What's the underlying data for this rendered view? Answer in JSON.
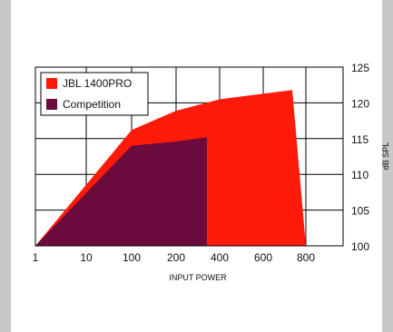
{
  "chart_data": {
    "type": "area",
    "x_ticks": [
      "1",
      "10",
      "100",
      "200",
      "400",
      "600",
      "800"
    ],
    "y_ticks": [
      "100",
      "105",
      "110",
      "115",
      "120",
      "125"
    ],
    "ylim": [
      100,
      125
    ],
    "xlabel": "INPUT POWER",
    "ylabel": "dB SPL",
    "grid": true,
    "legend_position": "top-left",
    "series": [
      {
        "name": "JBL 1400PRO",
        "color": "#ff1a0a",
        "points": [
          {
            "x": "1",
            "y": 100
          },
          {
            "x": "100",
            "y": 116.2
          },
          {
            "x": "200",
            "y": 118.9
          },
          {
            "x": "400",
            "y": 120.5
          },
          {
            "x": "700",
            "y": 121.8
          },
          {
            "x": "800",
            "y": 100
          }
        ]
      },
      {
        "name": "Competition",
        "color": "#6b0a3c",
        "points": [
          {
            "x": "1",
            "y": 100
          },
          {
            "x": "100",
            "y": 114.0
          },
          {
            "x": "200",
            "y": 114.6
          },
          {
            "x": "350",
            "y": 115.2
          },
          {
            "x": "350",
            "y": 100
          }
        ]
      }
    ]
  }
}
